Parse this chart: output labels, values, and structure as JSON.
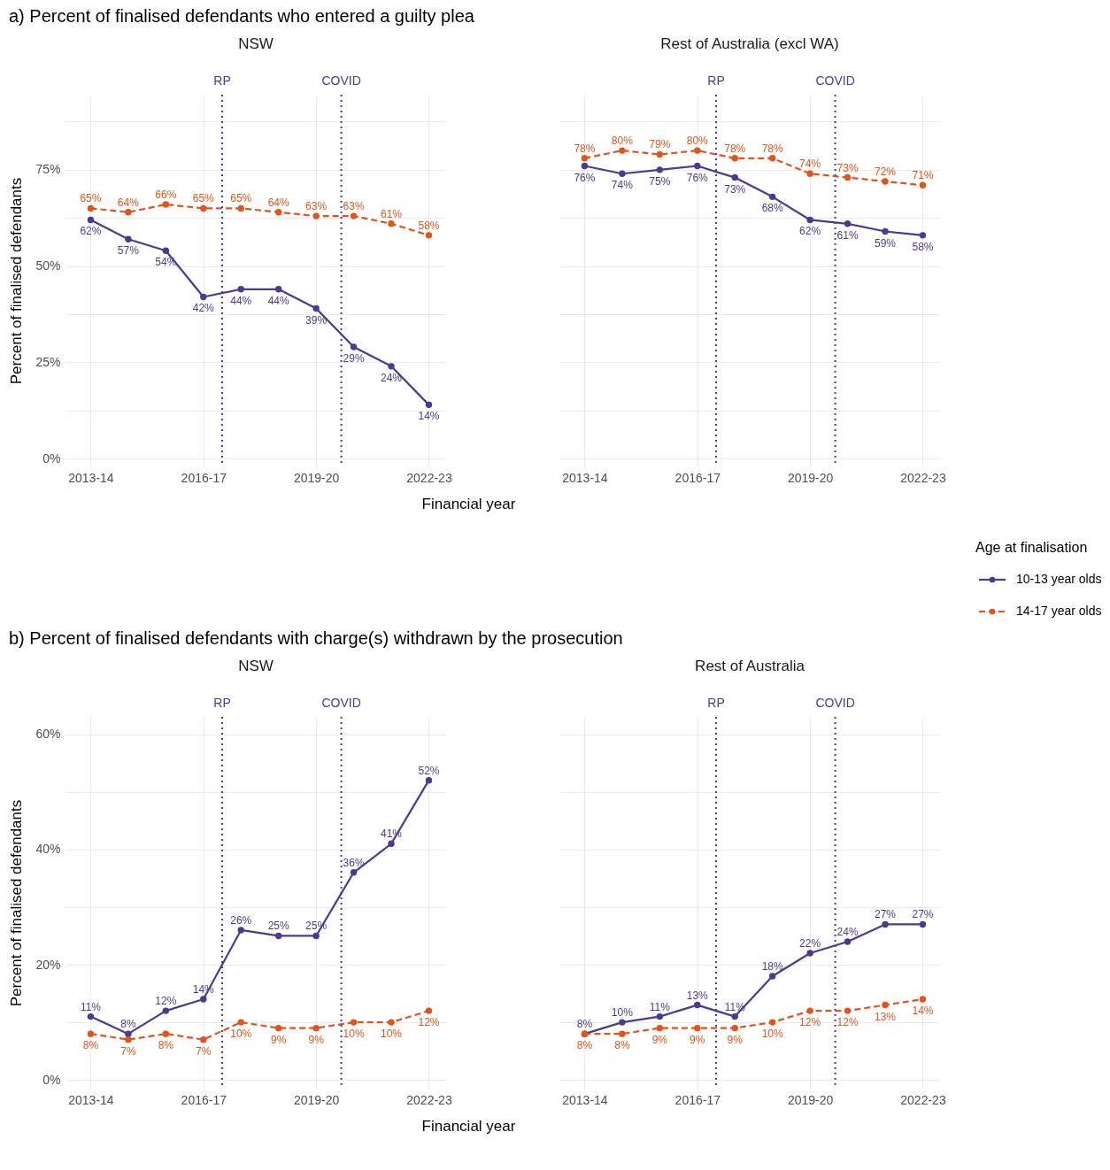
{
  "chart_data": [
    {
      "type": "line",
      "title": "a)  Percent of finalised defendants who entered a guilty plea",
      "subtitle": "NSW",
      "xlabel": "Financial year",
      "ylabel": "Percent of finalised defendants",
      "categories": [
        "2013-14",
        null,
        null,
        "2016-17",
        null,
        null,
        "2019-20",
        null,
        null,
        "2022-23"
      ],
      "ylim": [
        -2,
        94.5
      ],
      "yticks": [
        {
          "value": 0,
          "label": "0%"
        },
        {
          "value": 12.5,
          "label": null
        },
        {
          "value": 25,
          "label": "25%"
        },
        {
          "value": 37.5,
          "label": null
        },
        {
          "value": 50,
          "label": "50%"
        },
        {
          "value": 62.5,
          "label": null
        },
        {
          "value": 75,
          "label": "75%"
        },
        {
          "value": 87.5,
          "label": null
        }
      ],
      "series": [
        {
          "name": "10-13 year olds",
          "color": "#483c92",
          "line_style": "solid",
          "values": [
            62,
            57,
            54,
            42,
            44,
            44,
            39,
            29,
            24,
            14
          ],
          "value_labels": [
            "62%",
            "57%",
            "54%",
            "42%",
            "44%",
            "44%",
            "39%",
            "29%",
            "24%",
            "14%"
          ]
        },
        {
          "name": "14-17 year olds",
          "color": "#e2541c",
          "line_style": "dashed",
          "values": [
            65,
            64,
            66,
            65,
            65,
            64,
            63,
            63,
            61,
            58
          ],
          "value_labels": [
            "65%",
            "64%",
            "66%",
            "65%",
            "65%",
            "64%",
            "63%",
            "63%",
            "61%",
            "58%"
          ]
        }
      ],
      "annotations": [
        "RP",
        "COVID"
      ],
      "grid": true,
      "marker": "circle",
      "legend": "right",
      "legend_title": "Age at finalisation"
    },
    {
      "type": "line",
      "subtitle": "Rest of Australia (excl WA)",
      "categories": [
        "2013-14",
        null,
        null,
        "2016-17",
        null,
        null,
        "2019-20",
        null,
        null,
        "2022-23"
      ],
      "ylim": [
        -2,
        94.5
      ],
      "yticks": [
        0,
        12.5,
        25,
        37.5,
        50,
        62.5,
        75,
        87.5
      ],
      "series": [
        {
          "color": "#483c92",
          "line_style": "solid",
          "values": [
            76,
            74,
            75,
            76,
            73,
            68,
            62,
            61,
            59,
            58
          ],
          "value_labels": [
            "76%",
            "74%",
            "75%",
            "76%",
            "73%",
            "68%",
            "62%",
            "61%",
            "59%",
            "58%"
          ]
        },
        {
          "color": "#e2541c",
          "line_style": "dashed",
          "values": [
            78,
            80,
            79,
            80,
            78,
            78,
            74,
            73,
            72,
            71
          ],
          "value_labels": [
            "78%",
            "80%",
            "79%",
            "80%",
            "78%",
            "78%",
            "74%",
            "73%",
            "72%",
            "71%"
          ]
        }
      ],
      "annotations": [
        "RP",
        "COVID"
      ],
      "grid": true,
      "marker": "circle",
      "tick_labels": "x"
    },
    {
      "type": "line",
      "title": "b) Percent of finalised defendants with charge(s) withdrawn by the prosecution",
      "subtitle": "NSW",
      "xlabel": "Financial year",
      "ylabel": "Percent of finalised defendants",
      "categories": [
        "2013-14",
        null,
        null,
        "2016-17",
        null,
        null,
        "2019-20",
        null,
        null,
        "2022-23"
      ],
      "ylim": [
        -1.5,
        63
      ],
      "yticks": [
        {
          "value": 0,
          "label": "0%"
        },
        {
          "value": 10,
          "label": null
        },
        {
          "value": 20,
          "label": "20%"
        },
        {
          "value": 30,
          "label": null
        },
        {
          "value": 40,
          "label": "40%"
        },
        {
          "value": 50,
          "label": null
        },
        {
          "value": 60,
          "label": "60%"
        }
      ],
      "series": [
        {
          "color": "#483c92",
          "line_style": "solid",
          "values": [
            11,
            8,
            12,
            14,
            26,
            25,
            25,
            36,
            41,
            52
          ],
          "value_labels": [
            "11%",
            "8%",
            "12%",
            "14%",
            "26%",
            "25%",
            "25%",
            "36%",
            "41%",
            "52%"
          ]
        },
        {
          "color": "#e2541c",
          "line_style": "dashed",
          "values": [
            8,
            7,
            8,
            7,
            10,
            9,
            9,
            10,
            10,
            12
          ],
          "value_labels": [
            "8%",
            "7%",
            "8%",
            "7%",
            "10%",
            "9%",
            "9%",
            "10%",
            "10%",
            "12%"
          ]
        }
      ],
      "annotations": [
        "RP",
        "COVID"
      ],
      "grid": true,
      "marker": "circle"
    },
    {
      "type": "line",
      "subtitle": "Rest of Australia",
      "categories": [
        "2013-14",
        null,
        null,
        "2016-17",
        null,
        null,
        "2019-20",
        null,
        null,
        "2022-23"
      ],
      "ylim": [
        -1.5,
        63
      ],
      "yticks": [
        0,
        10,
        20,
        30,
        40,
        50,
        60
      ],
      "series": [
        {
          "color": "#483c92",
          "line_style": "solid",
          "values": [
            8,
            10,
            11,
            13,
            11,
            18,
            22,
            24,
            27,
            27
          ],
          "value_labels": [
            "8%",
            "10%",
            "11%",
            "13%",
            "11%",
            "18%",
            "22%",
            "24%",
            "27%",
            "27%"
          ]
        },
        {
          "color": "#e2541c",
          "line_style": "dashed",
          "values": [
            8,
            8,
            9,
            9,
            9,
            10,
            12,
            12,
            13,
            14
          ],
          "value_labels": [
            "8%",
            "8%",
            "9%",
            "9%",
            "9%",
            "10%",
            "12%",
            "12%",
            "13%",
            "14%"
          ]
        }
      ],
      "annotations": [
        "RP",
        "COVID"
      ],
      "grid": true,
      "marker": "circle",
      "tick_labels": "x"
    }
  ]
}
